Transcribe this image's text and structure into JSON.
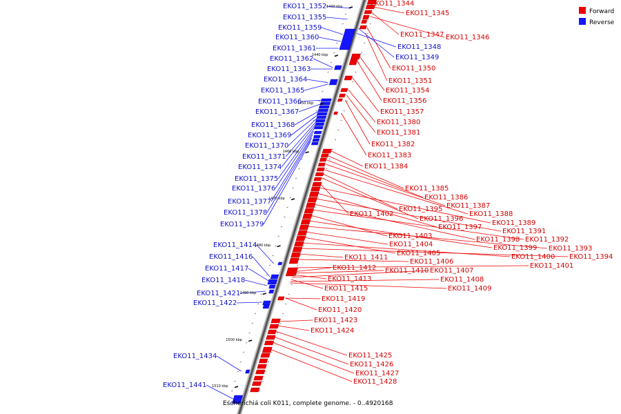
{
  "caption": "Escherichia coli K011, complete genome. - 0..4920168",
  "legend": [
    {
      "label": "Forward",
      "color": "#ee0000"
    },
    {
      "label": "Reverse",
      "color": "#1515ff"
    }
  ],
  "colors": {
    "forward": "#ee0000",
    "reverse": "#1515ff",
    "backbone": "#555555"
  },
  "ticks": [
    "1430 kbp",
    "1440 kbp",
    "1450 kbp",
    "1460 kbp",
    "1470 kbp",
    "1480 kbp",
    "1490 kbp",
    "1500 kbp",
    "1510 kbp"
  ],
  "forward_labels": [
    "EKO11_1344",
    "EKO11_1345",
    "EKO11_1347",
    "EKO11_1346",
    "EKO11_1350",
    "EKO11_1351",
    "EKO11_1354",
    "EKO11_1356",
    "EKO11_1357",
    "EKO11_1380",
    "EKO11_1381",
    "EKO11_1382",
    "EKO11_1383",
    "EKO11_1384",
    "EKO11_1385",
    "EKO11_1386",
    "EKO11_1387",
    "EKO11_1388",
    "EKO11_1395",
    "EKO11_1396",
    "EKO11_1402",
    "EKO11_1389",
    "EKO11_1397",
    "EKO11_1391",
    "EKO11_1398",
    "EKO11_1392",
    "EKO11_1403",
    "EKO11_1399",
    "EKO11_1393",
    "EKO11_1404",
    "EKO11_1405",
    "EKO11_1400",
    "EKO11_1394",
    "EKO11_1411",
    "EKO11_1406",
    "EKO11_1401",
    "EKO11_1412",
    "EKO11_1410",
    "EKO11_1407",
    "EKO11_1413",
    "EKO11_1408",
    "EKO11_1415",
    "EKO11_1409",
    "EKO11_1419",
    "EKO11_1420",
    "EKO11_1423",
    "EKO11_1424",
    "EKO11_1425",
    "EKO11_1426",
    "EKO11_1427",
    "EKO11_1428"
  ],
  "reverse_labels": [
    "EKO11_1352",
    "EKO11_1355",
    "EKO11_1359",
    "EKO11_1360",
    "EKO11_1348",
    "EKO11_1361",
    "EKO11_1349",
    "EKO11_1362",
    "EKO11_1363",
    "EKO11_1364",
    "EKO11_1365",
    "EKO11_1366",
    "EKO11_1367",
    "EKO11_1368",
    "EKO11_1369",
    "EKO11_1370",
    "EKO11_1371",
    "EKO11_1374",
    "EKO11_1375",
    "EKO11_1376",
    "EKO11_1377",
    "EKO11_1378",
    "EKO11_1379",
    "EKO11_1414",
    "EKO11_1416",
    "EKO11_1417",
    "EKO11_1418",
    "EKO11_1421",
    "EKO11_1422",
    "EKO11_1434",
    "EKO11_1441"
  ]
}
